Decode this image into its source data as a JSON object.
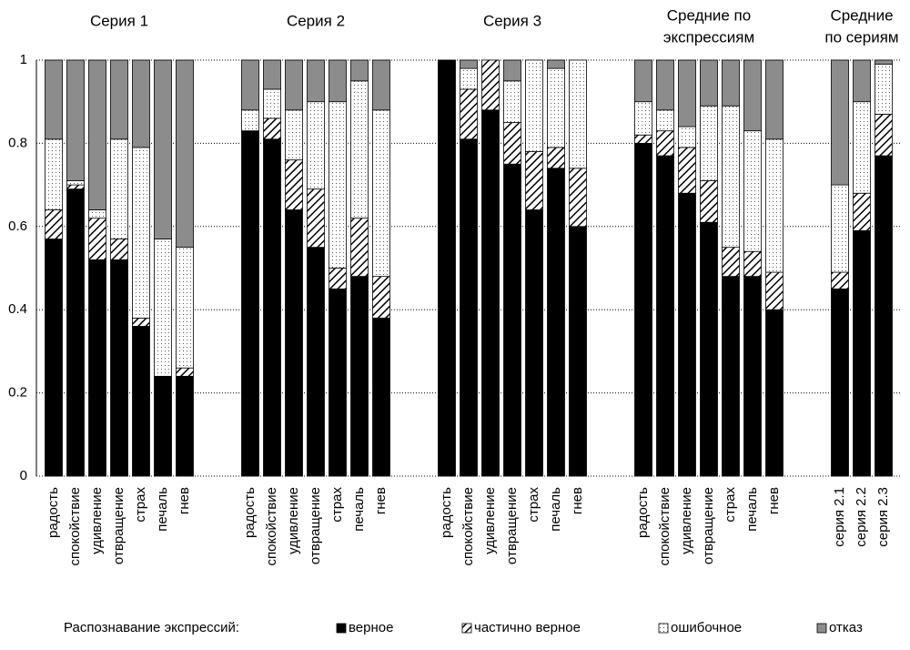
{
  "chart_data": {
    "type": "bar",
    "stacked": true,
    "ylim": [
      0,
      1
    ],
    "yticks": [
      0,
      0.2,
      0.4,
      0.6,
      0.8,
      1
    ],
    "grid": true,
    "legend_title": "Распознавание экспрессий:",
    "legend_position": "bottom",
    "groups": [
      {
        "title": [
          "Серия 1"
        ],
        "categories": [
          "радость",
          "спокойствие",
          "удивление",
          "отвращение",
          "страх",
          "печаль",
          "гнев"
        ]
      },
      {
        "title": [
          "Серия 2"
        ],
        "categories": [
          "радость",
          "спокойствие",
          "удивление",
          "отвращение",
          "страх",
          "печаль",
          "гнев"
        ]
      },
      {
        "title": [
          "Серия 3"
        ],
        "categories": [
          "радость",
          "спокойствие",
          "удивление",
          "отвращение",
          "страх",
          "печаль",
          "гнев"
        ]
      },
      {
        "title": [
          "Средние по",
          "экспрессиям"
        ],
        "categories": [
          "радость",
          "спокойствие",
          "удивление",
          "отвращение",
          "страх",
          "печаль",
          "гнев"
        ]
      },
      {
        "title": [
          "Средние",
          "по сериям"
        ],
        "categories": [
          "серия 2.1",
          "серия 2.2",
          "серия 2.3"
        ]
      }
    ],
    "series": [
      {
        "name": "верное",
        "color": "#000000",
        "pattern": "solid",
        "values": [
          [
            0.57,
            0.69,
            0.52,
            0.52,
            0.36,
            0.24,
            0.24
          ],
          [
            0.83,
            0.81,
            0.64,
            0.55,
            0.45,
            0.48,
            0.38
          ],
          [
            1.0,
            0.81,
            0.88,
            0.75,
            0.64,
            0.74,
            0.6
          ],
          [
            0.8,
            0.77,
            0.68,
            0.61,
            0.48,
            0.48,
            0.4
          ],
          [
            0.45,
            0.59,
            0.77
          ]
        ]
      },
      {
        "name": "частично верное",
        "color": "#000000",
        "pattern": "hatch",
        "values": [
          [
            0.07,
            0.01,
            0.1,
            0.05,
            0.02,
            0,
            0.02
          ],
          [
            0,
            0.05,
            0.12,
            0.14,
            0.05,
            0.14,
            0.1
          ],
          [
            0,
            0.12,
            0.12,
            0.1,
            0.14,
            0.05,
            0.14
          ],
          [
            0.02,
            0.06,
            0.11,
            0.1,
            0.07,
            0.06,
            0.09
          ],
          [
            0.04,
            0.09,
            0.1
          ]
        ]
      },
      {
        "name": "ошибочное",
        "color": "#000000",
        "pattern": "dots",
        "values": [
          [
            0.17,
            0.01,
            0.02,
            0.24,
            0.41,
            0.33,
            0.29
          ],
          [
            0.05,
            0.07,
            0.12,
            0.21,
            0.4,
            0.33,
            0.4
          ],
          [
            0,
            0.05,
            0,
            0.1,
            0.22,
            0.19,
            0.26
          ],
          [
            0.08,
            0.05,
            0.05,
            0.18,
            0.34,
            0.29,
            0.32
          ],
          [
            0.21,
            0.22,
            0.12
          ]
        ]
      },
      {
        "name": "отказ",
        "color": "#8c8c8c",
        "pattern": "solid",
        "values": [
          [
            0.19,
            0.29,
            0.36,
            0.19,
            0.21,
            0.43,
            0.45
          ],
          [
            0.12,
            0.07,
            0.12,
            0.1,
            0.1,
            0.05,
            0.12
          ],
          [
            0,
            0.02,
            0,
            0.05,
            0,
            0.02,
            0
          ],
          [
            0.1,
            0.12,
            0.16,
            0.11,
            0.11,
            0.17,
            0.19
          ],
          [
            0.3,
            0.1,
            0.01
          ]
        ]
      }
    ]
  }
}
